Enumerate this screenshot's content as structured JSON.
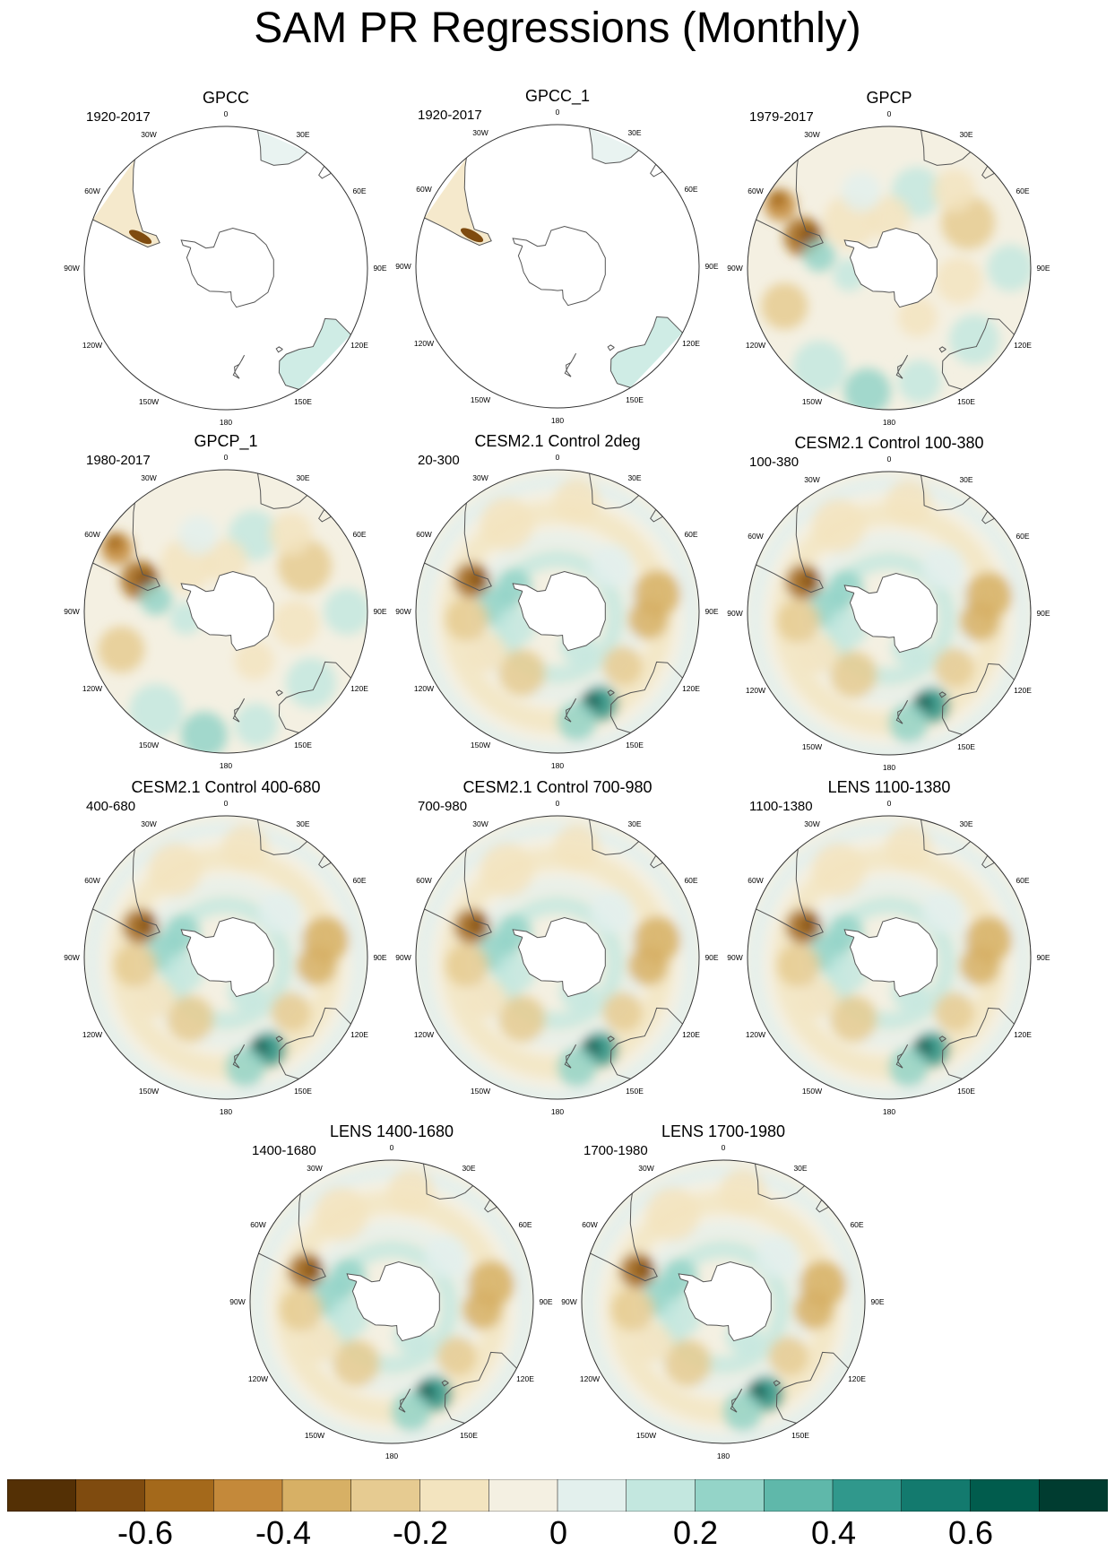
{
  "title": "SAM PR Regressions (Monthly)",
  "panels": [
    {
      "id": "gpcc",
      "title": "GPCC",
      "period": "1920-2017",
      "coverage": "land",
      "pattern": "obs"
    },
    {
      "id": "gpcc1",
      "title": "GPCC_1",
      "period": "1920-2017",
      "coverage": "land",
      "pattern": "obs"
    },
    {
      "id": "gpcp",
      "title": "GPCP",
      "period": "1979-2017",
      "coverage": "global",
      "pattern": "obs"
    },
    {
      "id": "gpcp1",
      "title": "GPCP_1",
      "period": "1980-2017",
      "coverage": "global",
      "pattern": "obs"
    },
    {
      "id": "cesm-2deg",
      "title": "CESM2.1 Control 2deg",
      "period": "20-300",
      "coverage": "global",
      "pattern": "model"
    },
    {
      "id": "cesm-100",
      "title": "CESM2.1 Control 100-380",
      "period": "100-380",
      "coverage": "global",
      "pattern": "model"
    },
    {
      "id": "cesm-400",
      "title": "CESM2.1 Control 400-680",
      "period": "400-680",
      "coverage": "global",
      "pattern": "model"
    },
    {
      "id": "cesm-700",
      "title": "CESM2.1 Control 700-980",
      "period": "700-980",
      "coverage": "global",
      "pattern": "model"
    },
    {
      "id": "lens-1100",
      "title": "LENS 1100-1380",
      "period": "1100-1380",
      "coverage": "global",
      "pattern": "model"
    },
    {
      "id": "lens-1400",
      "title": "LENS 1400-1680",
      "period": "1400-1680",
      "coverage": "global",
      "pattern": "model"
    },
    {
      "id": "lens-1700",
      "title": "LENS 1700-1980",
      "period": "1700-1980",
      "coverage": "global",
      "pattern": "model"
    }
  ],
  "longitude_labels": [
    "0",
    "30E",
    "60E",
    "90E",
    "120E",
    "150E",
    "180",
    "150W",
    "120W",
    "90W",
    "60W",
    "30W"
  ],
  "colorbar": {
    "colors": [
      "#543005",
      "#7f4b0f",
      "#a4691b",
      "#c4893a",
      "#d7b065",
      "#e6cb91",
      "#f3e4bf",
      "#f4f0e2",
      "#e3f0ed",
      "#c3e7df",
      "#94d4c8",
      "#5fb8aa",
      "#30988c",
      "#137a6e",
      "#015c4d",
      "#003c30"
    ],
    "tick_labels": [
      "-0.6",
      "-0.4",
      "-0.2",
      "0",
      "0.2",
      "0.4",
      "0.6"
    ],
    "tick_values": [
      -0.6,
      -0.4,
      -0.2,
      0,
      0.2,
      0.4,
      0.6
    ]
  }
}
